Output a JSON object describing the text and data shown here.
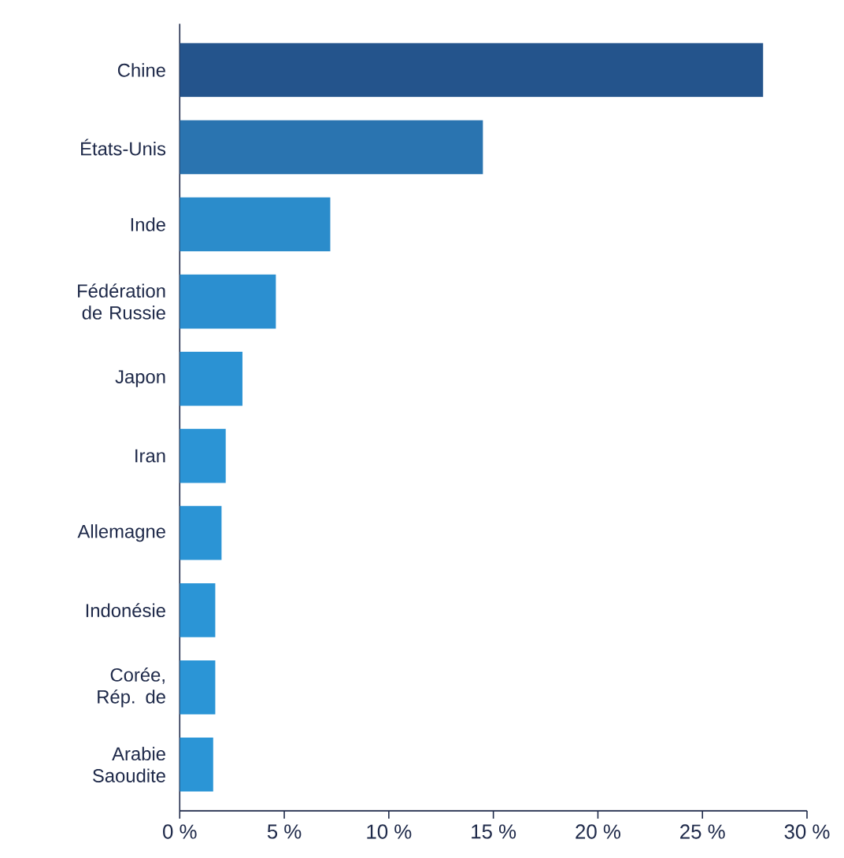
{
  "chart_data": {
    "type": "bar",
    "orientation": "horizontal",
    "categories": [
      "Chine",
      "États-Unis",
      "Inde",
      "Fédération de Russie",
      "Japon",
      "Iran",
      "Allemagne",
      "Indonésie",
      "Corée, Rép. de",
      "Arabie Saoudite"
    ],
    "values": [
      27.9,
      14.5,
      7.2,
      4.6,
      3.0,
      2.2,
      2.0,
      1.7,
      1.7,
      1.6
    ],
    "colors": [
      "#24548c",
      "#2a74b0",
      "#2b8ccb",
      "#2b8fd0",
      "#2b92d3",
      "#2b94d5",
      "#2b94d5",
      "#2b95d6",
      "#2b95d6",
      "#2b95d6"
    ],
    "xlim": [
      0,
      30
    ],
    "xticks": [
      {
        "value": 0,
        "label": "0 %"
      },
      {
        "value": 5,
        "label": "5 %"
      },
      {
        "value": 10,
        "label": "10 %"
      },
      {
        "value": 15,
        "label": "15 %"
      },
      {
        "value": 20,
        "label": "20 %"
      },
      {
        "value": 25,
        "label": "25 %"
      },
      {
        "value": 30,
        "label": "30 %"
      }
    ],
    "grid": false
  }
}
